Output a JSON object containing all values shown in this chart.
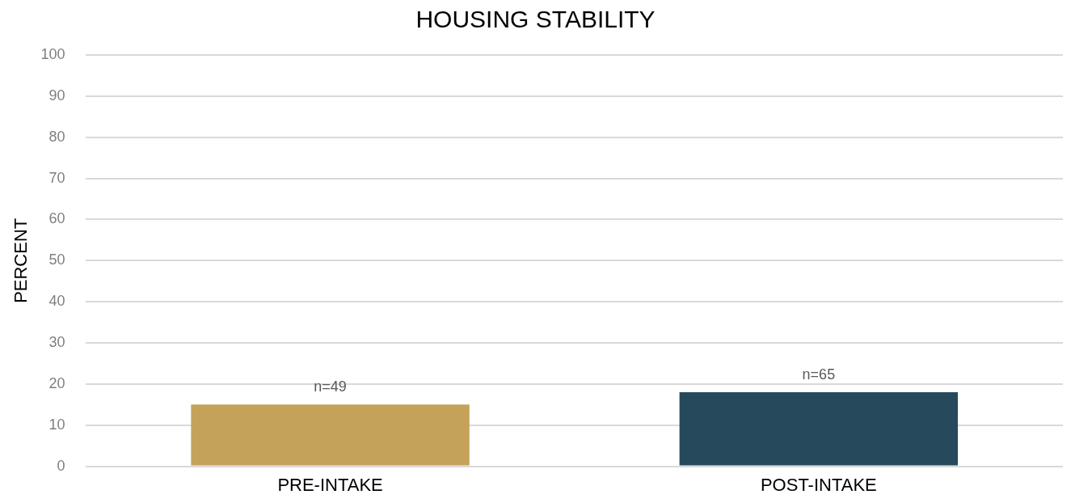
{
  "chart_data": {
    "type": "bar",
    "title": "HOUSING STABILITY",
    "ylabel": "PERCENT",
    "categories": [
      "PRE-INTAKE",
      "POST-INTAKE"
    ],
    "values": [
      15,
      18
    ],
    "colors": [
      "#c4a25a",
      "#264a5c"
    ],
    "annotations": [
      {
        "text": "n=49",
        "x": "PRE-INTAKE",
        "y": 15
      },
      {
        "text": "n=65",
        "x": "POST-INTAKE",
        "y": 18
      }
    ],
    "ylim": [
      0,
      100
    ],
    "yticks": [
      0,
      10,
      20,
      30,
      40,
      50,
      60,
      70,
      80,
      90,
      100
    ],
    "grid": "y",
    "legend": false
  }
}
